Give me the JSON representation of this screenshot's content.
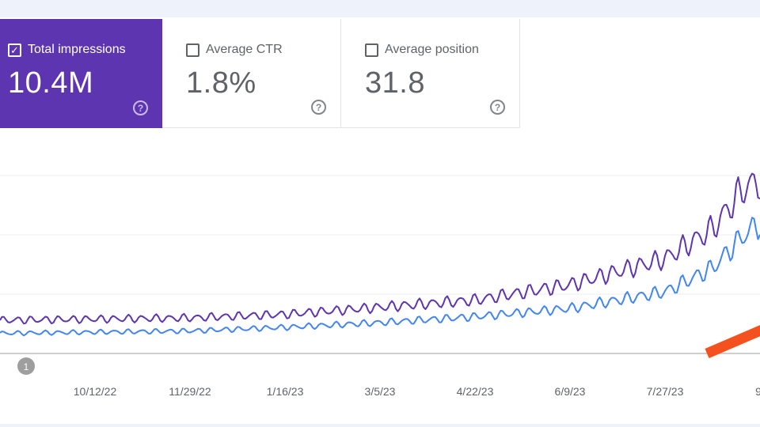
{
  "metric_cards": [
    {
      "label": "Total impressions",
      "value": "10.4M",
      "checked": true,
      "help_icon": "help-circle-icon"
    },
    {
      "label": "Average CTR",
      "value": "1.8%",
      "checked": false,
      "help_icon": "help-circle-icon"
    },
    {
      "label": "Average position",
      "value": "31.8",
      "checked": false,
      "help_icon": "help-circle-icon"
    }
  ],
  "annotation_marker": "1",
  "colors": {
    "selected_card": "#5e35b1",
    "impressions_line": "#5e35b1",
    "clicks_line": "#4285f4",
    "arrow": "#f4511e"
  },
  "chart_data": {
    "type": "line",
    "x_tick_labels": [
      "10/12/22",
      "11/29/22",
      "1/16/23",
      "3/5/23",
      "4/22/23",
      "6/9/23",
      "7/27/23",
      "9/"
    ],
    "x_range": [
      "8/25/22",
      "9/13/23"
    ],
    "grid": true,
    "series": [
      {
        "color": "#5e35b1",
        "trend": [
          [
            "8/25/22",
            28
          ],
          [
            "10/12/22",
            29
          ],
          [
            "11/29/22",
            30
          ],
          [
            "1/16/23",
            33
          ],
          [
            "3/5/23",
            39
          ],
          [
            "4/22/23",
            45
          ],
          [
            "6/9/23",
            58
          ],
          [
            "7/27/23",
            80
          ],
          [
            "8/20/23",
            105
          ],
          [
            "9/5/23",
            140
          ],
          [
            "9/13/23",
            145
          ]
        ]
      },
      {
        "color": "#4285f4",
        "trend": [
          [
            "8/25/22",
            17
          ],
          [
            "10/12/22",
            18
          ],
          [
            "11/29/22",
            19
          ],
          [
            "1/16/23",
            22
          ],
          [
            "3/5/23",
            26
          ],
          [
            "4/22/23",
            31
          ],
          [
            "6/9/23",
            38
          ],
          [
            "7/27/23",
            52
          ],
          [
            "8/20/23",
            72
          ],
          [
            "9/5/23",
            100
          ],
          [
            "9/13/23",
            110
          ]
        ]
      }
    ]
  }
}
